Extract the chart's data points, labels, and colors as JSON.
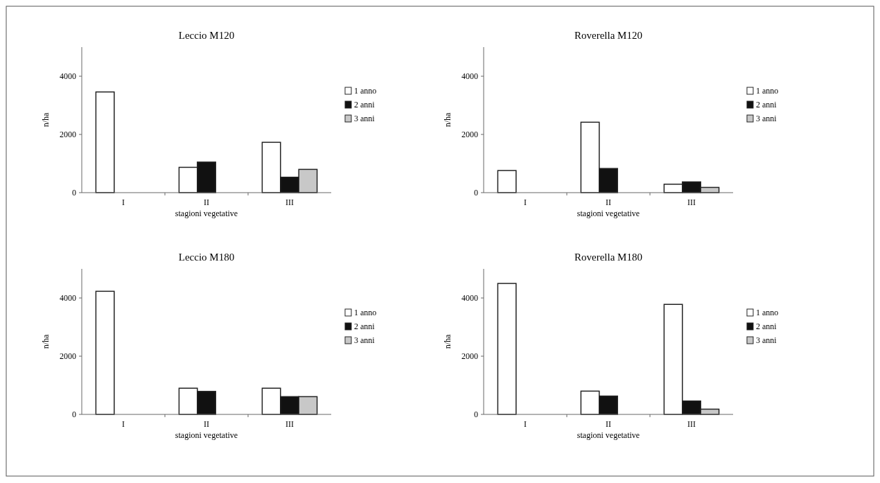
{
  "chart_data": [
    {
      "type": "bar",
      "title": "Leccio M120",
      "xlabel": "stagioni vegetative",
      "ylabel": "n/ha",
      "categories": [
        "I",
        "II",
        "III"
      ],
      "ylim": [
        0,
        5000
      ],
      "yticks": [
        0,
        2000,
        4000
      ],
      "legend": "right",
      "grid": false,
      "series": [
        {
          "name": "1 anno",
          "color": "#ffffff",
          "values": [
            3460,
            870,
            1730
          ]
        },
        {
          "name": "2 anni",
          "color": "#111111",
          "values": [
            null,
            1050,
            530
          ]
        },
        {
          "name": "3 anni",
          "color": "#c8c8c8",
          "values": [
            null,
            null,
            800
          ]
        }
      ]
    },
    {
      "type": "bar",
      "title": "Roverella M120",
      "xlabel": "stagioni vegetative",
      "ylabel": "n/ha",
      "categories": [
        "I",
        "II",
        "III"
      ],
      "ylim": [
        0,
        5000
      ],
      "yticks": [
        0,
        2000,
        4000
      ],
      "legend": "right",
      "grid": false,
      "series": [
        {
          "name": "1 anno",
          "color": "#ffffff",
          "values": [
            760,
            2420,
            290
          ]
        },
        {
          "name": "2 anni",
          "color": "#111111",
          "values": [
            null,
            830,
            370
          ]
        },
        {
          "name": "3 anni",
          "color": "#c8c8c8",
          "values": [
            null,
            null,
            180
          ]
        }
      ]
    },
    {
      "type": "bar",
      "title": "Leccio M180",
      "xlabel": "stagioni vegetative",
      "ylabel": "n/ha",
      "categories": [
        "I",
        "II",
        "III"
      ],
      "ylim": [
        0,
        5000
      ],
      "yticks": [
        0,
        2000,
        4000
      ],
      "legend": "right",
      "grid": false,
      "series": [
        {
          "name": "1 anno",
          "color": "#ffffff",
          "values": [
            4230,
            900,
            900
          ]
        },
        {
          "name": "2 anni",
          "color": "#111111",
          "values": [
            null,
            790,
            610
          ]
        },
        {
          "name": "3 anni",
          "color": "#c8c8c8",
          "values": [
            null,
            null,
            610
          ]
        }
      ]
    },
    {
      "type": "bar",
      "title": "Roverella M180",
      "xlabel": "stagioni vegetative",
      "ylabel": "n/ha",
      "categories": [
        "I",
        "II",
        "III"
      ],
      "ylim": [
        0,
        5000
      ],
      "yticks": [
        0,
        2000,
        4000
      ],
      "legend": "right",
      "grid": false,
      "series": [
        {
          "name": "1 anno",
          "color": "#ffffff",
          "values": [
            4500,
            800,
            3780
          ]
        },
        {
          "name": "2 anni",
          "color": "#111111",
          "values": [
            null,
            630,
            460
          ]
        },
        {
          "name": "3 anni",
          "color": "#c8c8c8",
          "values": [
            null,
            null,
            180
          ]
        }
      ]
    }
  ]
}
